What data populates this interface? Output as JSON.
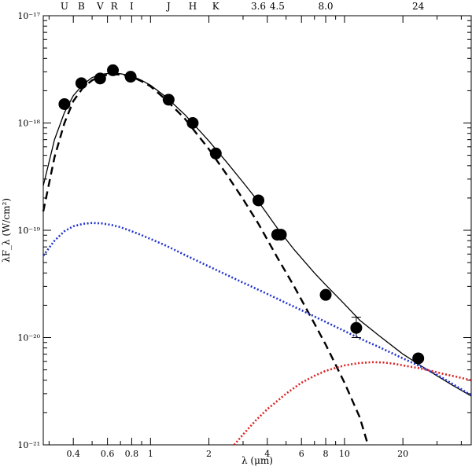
{
  "chart_data": {
    "type": "scatter",
    "title": "",
    "xlabel": "λ (μm)",
    "ylabel": "λF_λ (W/cm²)",
    "xscale": "log",
    "yscale": "log",
    "xlim": [
      0.28,
      45
    ],
    "ylim": [
      1e-21,
      1e-17
    ],
    "grid": false,
    "legend": "none",
    "x_ticks": [
      {
        "v": 0.4,
        "label": "0.4"
      },
      {
        "v": 0.6,
        "label": "0.6"
      },
      {
        "v": 0.8,
        "label": "0.8"
      },
      {
        "v": 1,
        "label": "1"
      },
      {
        "v": 2,
        "label": "2"
      },
      {
        "v": 4,
        "label": "4"
      },
      {
        "v": 6,
        "label": "6"
      },
      {
        "v": 8,
        "label": "8"
      },
      {
        "v": 10,
        "label": "10"
      },
      {
        "v": 20,
        "label": "20"
      }
    ],
    "y_ticks": [
      {
        "exp": -21,
        "label": "10⁻²¹"
      },
      {
        "exp": -20,
        "label": "10⁻²⁰"
      },
      {
        "exp": -19,
        "label": "10⁻¹⁹"
      },
      {
        "exp": -18,
        "label": "10⁻¹⁸"
      },
      {
        "exp": -17,
        "label": "10⁻¹⁷"
      }
    ],
    "band_labels": [
      {
        "x": 0.36,
        "label": "U"
      },
      {
        "x": 0.44,
        "label": "B"
      },
      {
        "x": 0.55,
        "label": "V"
      },
      {
        "x": 0.65,
        "label": "R"
      },
      {
        "x": 0.8,
        "label": "I"
      },
      {
        "x": 1.24,
        "label": "J"
      },
      {
        "x": 1.65,
        "label": "H"
      },
      {
        "x": 2.17,
        "label": "K"
      },
      {
        "x": 3.6,
        "label": "3.6"
      },
      {
        "x": 4.5,
        "label": "4.5"
      },
      {
        "x": 8.0,
        "label": "8.0"
      },
      {
        "x": 24,
        "label": "24"
      }
    ],
    "points": [
      {
        "x": 0.36,
        "y": 1.5e-18
      },
      {
        "x": 0.44,
        "y": 2.35e-18
      },
      {
        "x": 0.55,
        "y": 2.6e-18
      },
      {
        "x": 0.64,
        "y": 3.1e-18
      },
      {
        "x": 0.79,
        "y": 2.7e-18
      },
      {
        "x": 1.24,
        "y": 1.65e-18
      },
      {
        "x": 1.65,
        "y": 1e-18
      },
      {
        "x": 2.17,
        "y": 5.2e-19
      },
      {
        "x": 3.6,
        "y": 1.9e-19
      },
      {
        "x": 4.5,
        "y": 9.1e-20
      },
      {
        "x": 4.7,
        "y": 9.1e-20
      },
      {
        "x": 8.0,
        "y": 2.5e-20
      },
      {
        "x": 11.5,
        "y": 1.23e-20,
        "err_lo": 1e-20,
        "err_hi": 1.55e-20
      },
      {
        "x": 24,
        "y": 6.4e-21
      }
    ],
    "series": [
      {
        "style": "solid",
        "color": "#000000",
        "x": [
          0.28,
          0.32,
          0.36,
          0.4,
          0.45,
          0.5,
          0.56,
          0.63,
          0.7,
          0.8,
          0.9,
          1.0,
          1.2,
          1.5,
          2.0,
          2.5,
          3.0,
          3.6,
          4.5,
          5.5,
          7.0,
          8.0,
          10,
          12,
          15,
          20,
          25,
          30,
          36,
          45
        ],
        "y": [
          2.6e-19,
          7e-19,
          1.25e-18,
          1.8e-18,
          2.3e-18,
          2.65e-18,
          2.85e-18,
          2.92e-18,
          2.88e-18,
          2.75e-18,
          2.5e-18,
          2.25e-18,
          1.75e-18,
          1.2e-18,
          6.8e-19,
          4.2e-19,
          2.8e-19,
          1.85e-19,
          1.05e-19,
          6.6e-20,
          4e-20,
          3.1e-20,
          2.05e-20,
          1.45e-20,
          1.05e-20,
          7e-21,
          5.4e-21,
          4.4e-21,
          3.6e-21,
          2.85e-21
        ]
      },
      {
        "style": "dashed",
        "color": "#000000",
        "x": [
          0.28,
          0.32,
          0.36,
          0.4,
          0.45,
          0.5,
          0.56,
          0.63,
          0.7,
          0.8,
          0.9,
          1.0,
          1.2,
          1.5,
          2.0,
          2.5,
          3.0,
          3.6,
          4.5,
          5.5,
          7.0,
          8.0,
          10,
          12,
          13.2
        ],
        "y": [
          1.5e-19,
          4.8e-19,
          1e-18,
          1.6e-18,
          2.15e-18,
          2.5e-18,
          2.75e-18,
          2.85e-18,
          2.82e-18,
          2.7e-18,
          2.45e-18,
          2.2e-18,
          1.65e-18,
          1.1e-18,
          5.7e-19,
          3.2e-19,
          1.95e-19,
          1.15e-19,
          5.6e-20,
          3e-20,
          1.35e-20,
          8.6e-21,
          3.8e-21,
          1.8e-21,
          1e-21
        ]
      },
      {
        "style": "dotted",
        "color": "#2233cc",
        "x": [
          0.28,
          0.32,
          0.36,
          0.4,
          0.45,
          0.5,
          0.56,
          0.63,
          0.7,
          0.8,
          0.9,
          1.0,
          1.2,
          1.5,
          2.0,
          2.5,
          3.0,
          4.0,
          5.0,
          6.0,
          8.0,
          10,
          12,
          15,
          20,
          25,
          30,
          36,
          45
        ],
        "y": [
          5.8e-20,
          8e-20,
          9.8e-20,
          1.09e-19,
          1.15e-19,
          1.17e-19,
          1.16e-19,
          1.12e-19,
          1.07e-19,
          9.8e-20,
          9e-20,
          8.3e-20,
          7.2e-20,
          5.9e-20,
          4.6e-20,
          3.8e-20,
          3.25e-20,
          2.55e-20,
          2.1e-20,
          1.8e-20,
          1.4e-20,
          1.15e-20,
          9.8e-21,
          8.2e-21,
          6.4e-21,
          5.3e-21,
          4.5e-21,
          3.7e-21,
          2.9e-21
        ]
      },
      {
        "style": "dotted",
        "color": "#dd2222",
        "x": [
          2.7,
          3.0,
          3.5,
          4.0,
          5.0,
          6.0,
          7.0,
          8.0,
          10,
          12,
          14,
          16,
          18,
          20,
          24,
          28,
          32,
          38,
          45
        ],
        "y": [
          1e-21,
          1.25e-21,
          1.7e-21,
          2.15e-21,
          3e-21,
          3.8e-21,
          4.4e-21,
          4.9e-21,
          5.5e-21,
          5.8e-21,
          5.9e-21,
          5.85e-21,
          5.7e-21,
          5.5e-21,
          5.2e-21,
          4.9e-21,
          4.6e-21,
          4.3e-21,
          4e-21
        ]
      }
    ]
  }
}
